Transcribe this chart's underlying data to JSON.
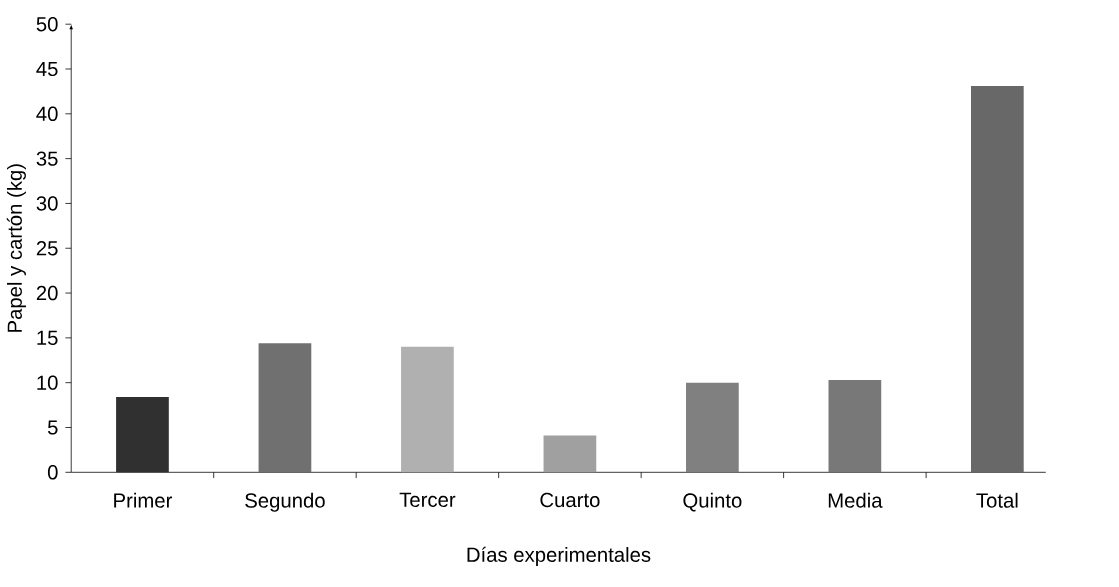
{
  "chart_data": {
    "type": "bar",
    "xlabel": "Días experimentales",
    "ylabel": "Papel y cartón (kg)",
    "categories": [
      "Primer",
      "Segundo",
      "Tercer",
      "Cuarto",
      "Quinto",
      "Media",
      "Total"
    ],
    "values": [
      8.4,
      14.4,
      14.0,
      4.1,
      10.0,
      10.3,
      43.1
    ],
    "colors": [
      "#303030",
      "#707070",
      "#b0b0b0",
      "#a0a0a0",
      "#808080",
      "#787878",
      "#686868"
    ],
    "ylim": [
      0,
      50
    ],
    "yticks": [
      0,
      5,
      10,
      15,
      20,
      25,
      30,
      35,
      40,
      45,
      50
    ]
  }
}
